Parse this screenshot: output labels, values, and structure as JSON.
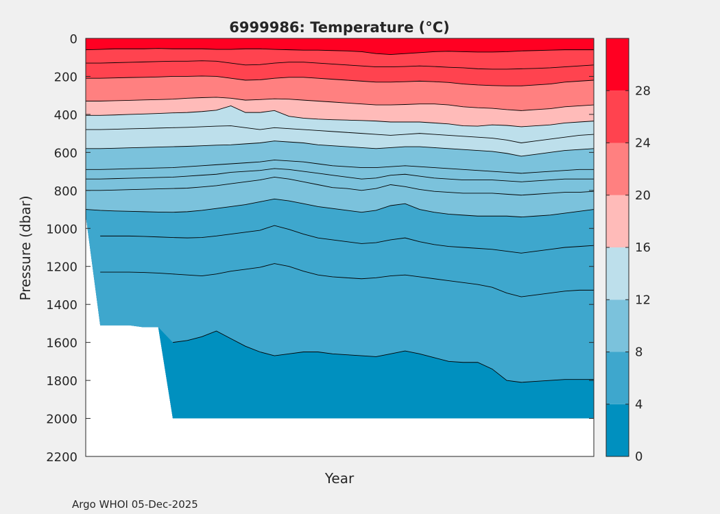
{
  "chart_data": {
    "type": "contour",
    "title": "6999986:  Temperature (°C)",
    "xlabel": "Year",
    "ylabel": "Pressure (dbar)",
    "footer": "Argo WHOI 05-Dec-2025",
    "ylim": [
      0,
      2200
    ],
    "y_reversed": true,
    "yticks": [
      0,
      200,
      400,
      600,
      800,
      1000,
      1200,
      1400,
      1600,
      1800,
      2000,
      2200
    ],
    "x_profiles": 36,
    "colorbar": {
      "range": [
        0,
        32
      ],
      "ticks": [
        0,
        4,
        8,
        12,
        16,
        20,
        24,
        28
      ],
      "bands": [
        {
          "from": 0,
          "to": 4,
          "color": "#0090bf"
        },
        {
          "from": 4,
          "to": 8,
          "color": "#3ea7cd"
        },
        {
          "from": 8,
          "to": 12,
          "color": "#7bc2dc"
        },
        {
          "from": 12,
          "to": 16,
          "color": "#bddfeb"
        },
        {
          "from": 16,
          "to": 20,
          "color": "#ffbbb9"
        },
        {
          "from": 20,
          "to": 24,
          "color": "#ff8080"
        },
        {
          "from": 24,
          "to": 28,
          "color": "#ff434f"
        },
        {
          "from": 28,
          "to": 32,
          "color": "#ff0022"
        }
      ]
    },
    "contour_levels": [
      {
        "level": 28,
        "depth": [
          60,
          58,
          55,
          55,
          55,
          53,
          55,
          55,
          55,
          58,
          58,
          55,
          55,
          58,
          60,
          62,
          62,
          64,
          66,
          70,
          80,
          85,
          80,
          75,
          70,
          68,
          70,
          72,
          72,
          70,
          66,
          64,
          62,
          60,
          60,
          60
        ]
      },
      {
        "level": 26,
        "depth": [
          130,
          130,
          128,
          126,
          124,
          122,
          120,
          120,
          118,
          120,
          130,
          140,
          138,
          130,
          125,
          125,
          130,
          135,
          140,
          145,
          150,
          150,
          148,
          145,
          148,
          152,
          155,
          160,
          162,
          162,
          160,
          158,
          155,
          150,
          145,
          140
        ]
      },
      {
        "level": 24,
        "depth": [
          210,
          210,
          208,
          206,
          205,
          203,
          200,
          200,
          198,
          200,
          210,
          220,
          218,
          210,
          205,
          205,
          210,
          215,
          220,
          225,
          230,
          230,
          228,
          225,
          228,
          232,
          240,
          245,
          248,
          250,
          250,
          245,
          240,
          230,
          225,
          220
        ]
      },
      {
        "level": 18,
        "depth": [
          330,
          330,
          328,
          326,
          324,
          322,
          320,
          315,
          312,
          310,
          315,
          325,
          322,
          318,
          320,
          325,
          330,
          335,
          340,
          345,
          350,
          350,
          348,
          345,
          345,
          350,
          360,
          365,
          368,
          375,
          380,
          375,
          370,
          360,
          355,
          350
        ]
      },
      {
        "level": 16,
        "depth": [
          405,
          405,
          403,
          400,
          398,
          395,
          392,
          390,
          385,
          378,
          355,
          390,
          390,
          380,
          410,
          420,
          425,
          428,
          430,
          432,
          435,
          440,
          440,
          440,
          445,
          450,
          460,
          462,
          455,
          458,
          465,
          460,
          455,
          445,
          440,
          435
        ]
      },
      {
        "level": 14,
        "depth": [
          480,
          480,
          478,
          476,
          474,
          472,
          470,
          468,
          465,
          462,
          460,
          470,
          480,
          470,
          475,
          480,
          485,
          490,
          495,
          500,
          505,
          510,
          505,
          500,
          505,
          510,
          515,
          520,
          525,
          535,
          550,
          540,
          530,
          520,
          510,
          505
        ]
      },
      {
        "level": 12,
        "depth": [
          580,
          580,
          578,
          576,
          574,
          572,
          570,
          568,
          565,
          562,
          560,
          555,
          550,
          540,
          545,
          550,
          560,
          565,
          570,
          575,
          580,
          575,
          570,
          570,
          575,
          580,
          585,
          590,
          595,
          605,
          620,
          610,
          600,
          590,
          585,
          580
        ]
      },
      {
        "level": 11,
        "depth": [
          690,
          690,
          688,
          686,
          684,
          682,
          680,
          675,
          670,
          665,
          660,
          655,
          650,
          640,
          645,
          650,
          660,
          670,
          675,
          680,
          680,
          675,
          670,
          675,
          680,
          685,
          690,
          695,
          700,
          705,
          710,
          705,
          700,
          695,
          690,
          690
        ]
      },
      {
        "level": 10,
        "depth": [
          740,
          740,
          738,
          736,
          734,
          732,
          730,
          725,
          720,
          715,
          705,
          700,
          695,
          685,
          690,
          700,
          710,
          720,
          730,
          740,
          735,
          720,
          715,
          725,
          735,
          740,
          745,
          745,
          745,
          750,
          755,
          750,
          745,
          740,
          740,
          740
        ]
      },
      {
        "level": 9,
        "depth": [
          800,
          800,
          798,
          796,
          794,
          792,
          790,
          788,
          782,
          775,
          765,
          755,
          745,
          730,
          740,
          755,
          770,
          785,
          790,
          800,
          790,
          770,
          780,
          795,
          805,
          810,
          815,
          815,
          815,
          820,
          825,
          820,
          815,
          810,
          810,
          805
        ]
      },
      {
        "level": 8,
        "depth": [
          900,
          905,
          908,
          910,
          912,
          914,
          915,
          912,
          905,
          895,
          885,
          875,
          860,
          845,
          855,
          870,
          885,
          895,
          905,
          915,
          905,
          880,
          870,
          900,
          915,
          925,
          930,
          935,
          935,
          935,
          940,
          935,
          930,
          920,
          910,
          900
        ]
      },
      {
        "level": 7,
        "depth": [
          1040,
          1040,
          1040,
          1040,
          1042,
          1045,
          1048,
          1050,
          1048,
          1040,
          1030,
          1020,
          1010,
          985,
          1005,
          1030,
          1050,
          1060,
          1070,
          1080,
          1075,
          1060,
          1050,
          1070,
          1085,
          1095,
          1100,
          1105,
          1110,
          1120,
          1130,
          1120,
          1110,
          1100,
          1095,
          1090
        ]
      },
      {
        "level": 6,
        "depth": [
          1230,
          1230,
          1230,
          1230,
          1232,
          1235,
          1240,
          1245,
          1250,
          1240,
          1225,
          1215,
          1205,
          1185,
          1200,
          1225,
          1245,
          1255,
          1260,
          1265,
          1260,
          1250,
          1245,
          1255,
          1265,
          1275,
          1285,
          1295,
          1310,
          1340,
          1360,
          1350,
          1340,
          1330,
          1325,
          1325
        ]
      },
      {
        "level": 4,
        "depth": [
          null,
          null,
          null,
          null,
          null,
          null,
          1600,
          1590,
          1570,
          1540,
          1580,
          1620,
          1650,
          1670,
          1660,
          1650,
          1650,
          1660,
          1665,
          1670,
          1675,
          1660,
          1645,
          1660,
          1680,
          1700,
          1705,
          1705,
          1740,
          1800,
          1810,
          1805,
          1800,
          1795,
          1795,
          1795
        ]
      }
    ],
    "max_depth": [
      930,
      1510,
      1510,
      1510,
      1520,
      1520,
      2000,
      2000,
      2000,
      2000,
      2000,
      2000,
      2000,
      2000,
      2000,
      2000,
      2000,
      2000,
      2000,
      2000,
      2000,
      2000,
      2000,
      2000,
      2000,
      2000,
      2000,
      2000,
      2000,
      2000,
      2000,
      2000,
      2000,
      2000,
      2000,
      2000
    ]
  }
}
